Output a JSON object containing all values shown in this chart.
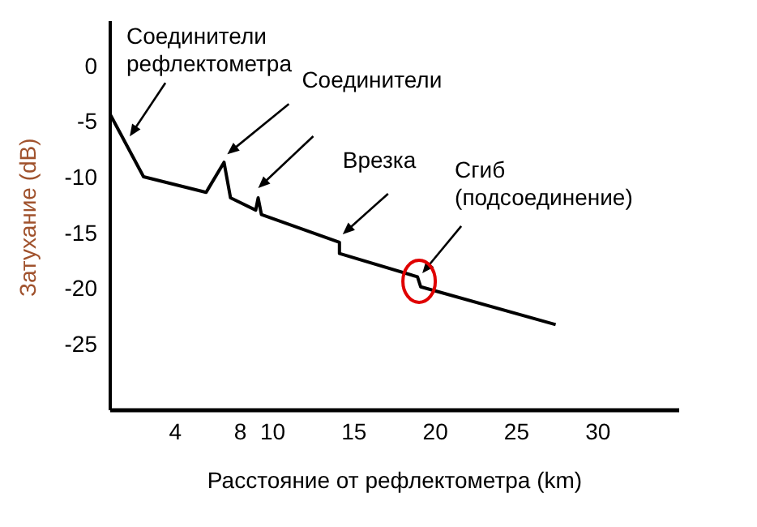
{
  "chart_data": {
    "type": "line",
    "xlabel": "Расстояние от рефлектометра (km)",
    "ylabel": "Затухание (dB)",
    "x": [
      0,
      2.05,
      5.9,
      7.0,
      7.4,
      8.95,
      9.1,
      9.3,
      14.1,
      14.1,
      18.9,
      19.1,
      27.4
    ],
    "series": [
      {
        "color": "#000000",
        "values": [
          -4.4,
          -10.0,
          -11.4,
          -8.7,
          -11.9,
          -13.0,
          -11.9,
          -13.4,
          -15.9,
          -16.9,
          -19.0,
          -19.9,
          -23.3
        ]
      }
    ],
    "xlim": [
      0,
      35
    ],
    "xticks": [
      4,
      8,
      10,
      15,
      20,
      25,
      30
    ],
    "ylim": [
      -31,
      4
    ],
    "yticks": [
      0,
      -5,
      -10,
      -15,
      -20,
      -25
    ],
    "grid": false,
    "legend": false,
    "marker": "none",
    "line_style": "solid",
    "annotations": [
      {
        "text": "Соединители рефлектометра",
        "x": 1.0,
        "y": -7.1
      },
      {
        "text": "Соединители",
        "x": 7.0,
        "y": -8.7
      },
      {
        "text": "Врезка",
        "x": 14.1,
        "y": -15.9
      },
      {
        "text": "Сгиб (подсоединение)",
        "x": 19.0,
        "y": -19.4
      }
    ]
  }
}
